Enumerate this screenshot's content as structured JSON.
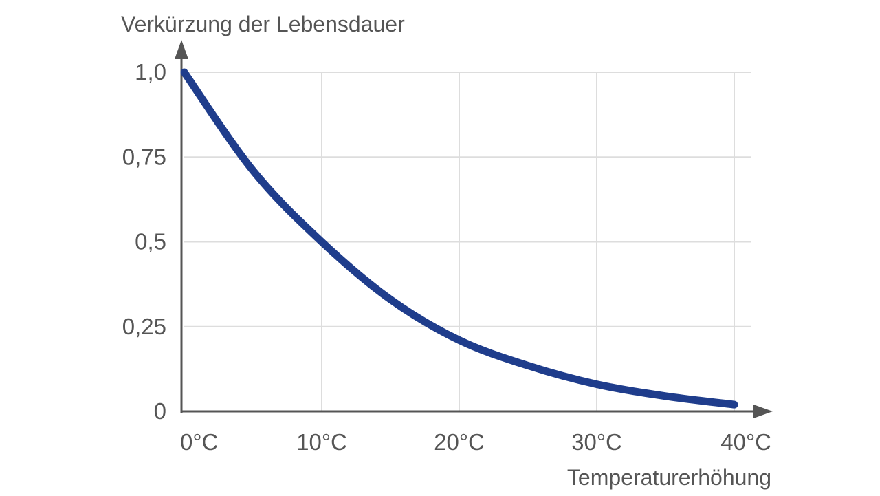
{
  "chart_data": {
    "type": "line",
    "title": "",
    "ylabel": "Verkürzung der Lebensdauer",
    "xlabel": "Temperaturerhöhung",
    "x_categories": [
      "0°C",
      "10°C",
      "20°C",
      "30°C",
      "40°C"
    ],
    "y_ticks": [
      "0",
      "0,25",
      "0,5",
      "0,75",
      "1,0"
    ],
    "xlim": [
      0,
      40
    ],
    "ylim": [
      0,
      1
    ],
    "grid": true,
    "colors": {
      "line": "#1f3d8c",
      "grid": "#dddddd",
      "axis": "#555555",
      "text": "#555555"
    },
    "series": [
      {
        "x": [
          0,
          5,
          10,
          15,
          20,
          25,
          30,
          35,
          40
        ],
        "y": [
          1.0,
          0.71,
          0.5,
          0.33,
          0.21,
          0.135,
          0.08,
          0.045,
          0.02
        ]
      }
    ]
  }
}
